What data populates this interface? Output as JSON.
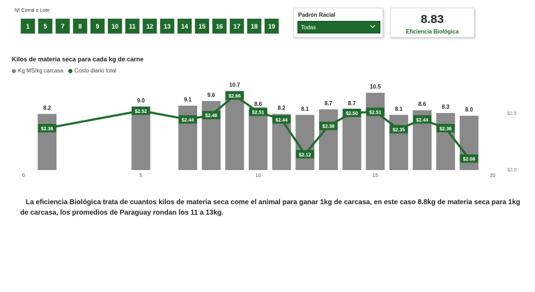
{
  "slicer": {
    "label": "Nº Corral o Lote",
    "items": [
      "1",
      "5",
      "7",
      "8",
      "9",
      "10",
      "11",
      "12",
      "13",
      "14",
      "15",
      "16",
      "17",
      "18",
      "19"
    ]
  },
  "padron": {
    "title": "Padrón Racial",
    "selected": "Todas"
  },
  "kpi": {
    "value": "8.83",
    "label": "Eficiencia Biológica"
  },
  "chart": {
    "title": "Kilos de materia seca para cada kg de carne",
    "legend": {
      "bars": "Kg MS/kg carcasa",
      "line": "Costo diario total"
    }
  },
  "chart_data": {
    "type": "bar",
    "title": "Kilos de materia seca para cada kg de carne",
    "x": [
      1,
      5,
      7,
      8,
      9,
      10,
      11,
      12,
      13,
      14,
      15,
      16,
      17,
      18,
      19
    ],
    "x_ticks": [
      "0",
      "5",
      "10",
      "15",
      "20"
    ],
    "xlim": [
      0,
      20
    ],
    "series": [
      {
        "name": "Kg MS/kg carcasa",
        "type": "bar",
        "axis": "left",
        "values": [
          8.2,
          9.0,
          9.1,
          9.6,
          10.7,
          8.6,
          8.2,
          8.1,
          8.7,
          8.7,
          10.5,
          8.1,
          8.6,
          8.3,
          8.0
        ],
        "labels": [
          "8.2",
          "9.0",
          "9.1",
          "9.6",
          "10.7",
          "8.6",
          "8.2",
          "8.1",
          "8.7",
          "8.7",
          "10.5",
          "8.1",
          "8.6",
          "8.3",
          "8.0"
        ]
      },
      {
        "name": "Costo diario total",
        "type": "line",
        "axis": "right",
        "values": [
          2.36,
          2.52,
          2.44,
          2.48,
          2.66,
          2.51,
          2.44,
          2.12,
          2.38,
          2.5,
          2.51,
          2.35,
          2.44,
          2.36,
          2.08
        ],
        "labels": [
          "$2.36",
          "$2.52",
          "$2.44",
          "$2.48",
          "$2.66",
          "$2.51",
          "$2.44",
          "$2.12",
          "$2.38",
          "$2.50",
          "$2.51",
          "$2.35",
          "$2.44",
          "$2.36",
          "$2.08"
        ]
      }
    ],
    "y2_ticks": [
      "$2.5",
      "$2.0"
    ],
    "y2lim": [
      2.0,
      2.75
    ],
    "grid": false,
    "legend_position": "top-left",
    "colors": {
      "bar": "#8a8a8a",
      "line": "#1e6b2c"
    }
  },
  "description": "La eficiencia Biológica trata de cuantos kilos de materia seca come el animal para ganar 1kg de carcasa, en este caso 8.8kg de materia seca para 1kg de carcasa, los promedios de Paraguay rondan los 11 a 13kg."
}
